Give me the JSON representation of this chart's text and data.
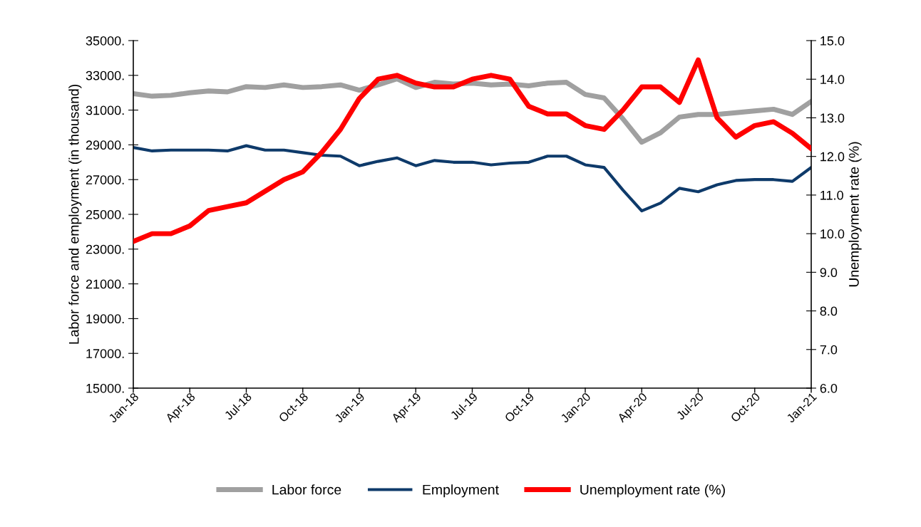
{
  "chart_data": {
    "type": "line",
    "ylabel": "Labor force and employment (in thousand)",
    "y2label": "Unemployment rate (%)",
    "categories": [
      "Jan-18",
      null,
      null,
      "Apr-18",
      null,
      null,
      "Jul-18",
      null,
      null,
      "Oct-18",
      null,
      null,
      "Jan-19",
      null,
      null,
      "Apr-19",
      null,
      null,
      "Jul-19",
      null,
      null,
      "Oct-19",
      null,
      null,
      "Jan-20",
      null,
      null,
      "Apr-20",
      null,
      null,
      "Jul-20",
      null,
      null,
      "Oct-20",
      null,
      null,
      "Jan-21"
    ],
    "series": [
      {
        "name": "Labor force",
        "color": "#a0a0a0",
        "values": [
          31950,
          31800,
          31850,
          32000,
          32100,
          32050,
          32350,
          32300,
          32450,
          32300,
          32350,
          32450,
          32150,
          32450,
          32800,
          32300,
          32600,
          32500,
          32550,
          32450,
          32500,
          32400,
          32550,
          32600,
          31900,
          31700,
          30500,
          29150,
          29700,
          30600,
          30750,
          30750,
          30850,
          30950,
          31050,
          30750,
          31500
        ]
      },
      {
        "name": "Employment",
        "color": "#0e3a6a",
        "values": [
          28850,
          28650,
          28700,
          28700,
          28700,
          28650,
          28950,
          28700,
          28700,
          28550,
          28400,
          28350,
          27800,
          28050,
          28250,
          27800,
          28100,
          28000,
          28000,
          27850,
          27950,
          28000,
          28350,
          28350,
          27850,
          27700,
          26400,
          25200,
          25650,
          26500,
          26300,
          26700,
          26950,
          27000,
          27000,
          26900,
          27700
        ]
      },
      {
        "name": "Unemployment rate (%)",
        "color": "#ff0000",
        "axis": "y2",
        "values": [
          9.8,
          10.0,
          10.0,
          10.2,
          10.6,
          10.7,
          10.8,
          11.1,
          11.4,
          11.6,
          12.1,
          12.7,
          13.5,
          14.0,
          14.1,
          13.9,
          13.8,
          13.8,
          14.0,
          14.1,
          14.0,
          13.3,
          13.1,
          13.1,
          12.8,
          12.7,
          13.2,
          13.8,
          13.8,
          13.4,
          14.5,
          13.0,
          12.5,
          12.8,
          12.9,
          12.6,
          12.2
        ]
      }
    ],
    "ylim": [
      15000,
      35000
    ],
    "yticks": [
      {
        "value": 15000,
        "label": "15000."
      },
      {
        "value": 17000,
        "label": "17000."
      },
      {
        "value": 19000,
        "label": "19000."
      },
      {
        "value": 21000,
        "label": "21000."
      },
      {
        "value": 23000,
        "label": "23000."
      },
      {
        "value": 25000,
        "label": "25000."
      },
      {
        "value": 27000,
        "label": "27000."
      },
      {
        "value": 29000,
        "label": "29000."
      },
      {
        "value": 31000,
        "label": "31000."
      },
      {
        "value": 33000,
        "label": "33000."
      },
      {
        "value": 35000,
        "label": "35000."
      }
    ],
    "y2lim": [
      6,
      15
    ],
    "y2ticks": [
      {
        "value": 6,
        "label": "6.0"
      },
      {
        "value": 7,
        "label": "7.0"
      },
      {
        "value": 8,
        "label": "8.0"
      },
      {
        "value": 9,
        "label": "9.0"
      },
      {
        "value": 10,
        "label": "10.0"
      },
      {
        "value": 11,
        "label": "11.0"
      },
      {
        "value": 12,
        "label": "12.0"
      },
      {
        "value": 13,
        "label": "13.0"
      },
      {
        "value": 14,
        "label": "14.0"
      },
      {
        "value": 15,
        "label": "15.0"
      }
    ],
    "grid": false,
    "legend": "bottom",
    "marker": "none",
    "line_style": "solid"
  }
}
